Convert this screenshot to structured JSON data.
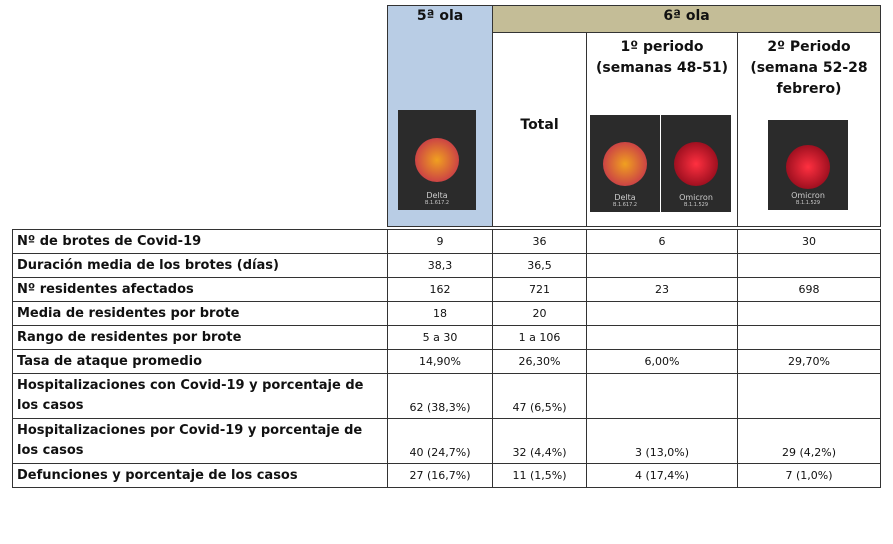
{
  "table": {
    "header": {
      "wave5": "5ª ola",
      "wave6": "6ª ola",
      "columns": [
        [
          "Total"
        ],
        [
          "1º periodo",
          "(semanas 48-51)"
        ],
        [
          "2º Periodo",
          "(semana 52-28",
          "febrero)"
        ]
      ]
    },
    "images": {
      "wave5": [
        {
          "name": "Delta",
          "lineage": "B.1.617.2"
        }
      ],
      "period1": [
        {
          "name": "Delta",
          "lineage": "B.1.617.2"
        },
        {
          "name": "Omicron",
          "lineage": "B.1.1.529"
        }
      ],
      "period2": [
        {
          "name": "Omicron",
          "lineage": "B.1.1.529"
        }
      ]
    },
    "rows": [
      {
        "label": "Nº de brotes de Covid-19",
        "cells": [
          "9",
          "36",
          "6",
          "30"
        ]
      },
      {
        "label": "Duración media de los brotes (días)",
        "cells": [
          "38,3",
          "36,5",
          null,
          null
        ]
      },
      {
        "label": "Nº residentes afectados",
        "cells": [
          "162",
          "721",
          "23",
          "698"
        ]
      },
      {
        "label": "Media de residentes por brote",
        "cells": [
          "18",
          "20",
          null,
          null
        ]
      },
      {
        "label": "Rango de residentes por brote",
        "cells": [
          "5 a 30",
          "1 a 106",
          null,
          null
        ]
      },
      {
        "label": "Tasa de ataque promedio",
        "cells": [
          "14,90%",
          "26,30%",
          "6,00%",
          "29,70%"
        ]
      },
      {
        "label": "Hospitalizaciones con Covid-19 y porcentaje de los casos",
        "cells": [
          "62 (38,3%)",
          "47 (6,5%)",
          null,
          null
        ]
      },
      {
        "label": "Hospitalizaciones por Covid-19 y porcentaje de los casos",
        "cells": [
          "40 (24,7%)",
          "32 (4,4%)",
          "3 (13,0%)",
          "29 (4,2%)"
        ]
      },
      {
        "label": "Defunciones y porcentaje de los casos",
        "cells": [
          "27 (16,7%)",
          "11 (1,5%)",
          "4 (17,4%)",
          "7 (1,0%)"
        ]
      }
    ]
  }
}
